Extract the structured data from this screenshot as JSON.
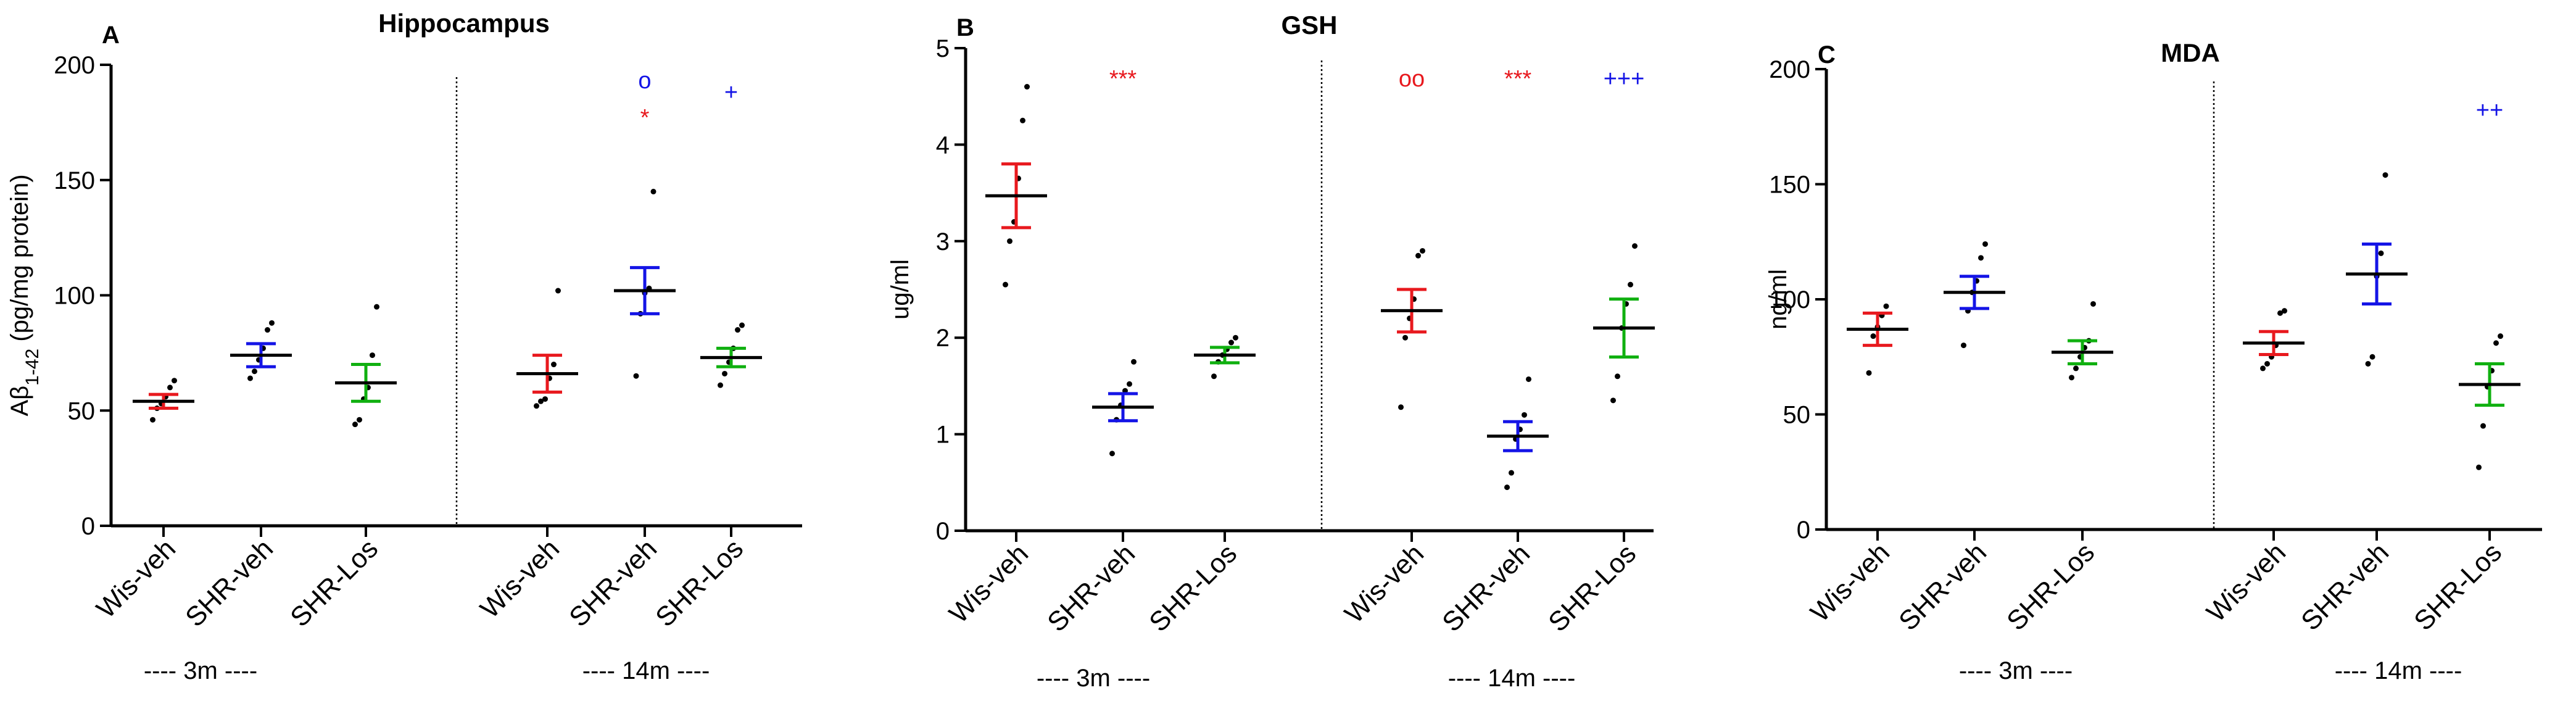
{
  "chart_data": [
    {
      "type": "scatter",
      "panel": "A",
      "title": "Hippocampus",
      "ylabel_main": "Aβ",
      "ylabel_sub": "1-42",
      "ylabel_rest": " (pg/mg protein)",
      "ylim": [
        0,
        200
      ],
      "yticks": [
        "0",
        "50",
        "100",
        "150",
        "200"
      ],
      "categories": [
        "Wis-veh",
        "SHR-veh",
        "SHR-Los",
        "Wis-veh",
        "SHR-veh",
        "SHR-Los"
      ],
      "groups": [
        "---- 3m ----",
        "---- 14m ----"
      ],
      "colors": [
        "#e8191e",
        "#1414e6",
        "#10b010",
        "#e8191e",
        "#1414e6",
        "#10b010"
      ],
      "series": [
        {
          "mean": 54,
          "sem": 3,
          "points": [
            46,
            51,
            53,
            56,
            60,
            63
          ]
        },
        {
          "mean": 74,
          "sem": 5,
          "points": [
            64,
            67,
            72,
            77,
            85,
            88
          ]
        },
        {
          "mean": 62,
          "sem": 8,
          "points": [
            44,
            46,
            55,
            60,
            74,
            95
          ]
        },
        {
          "mean": 66,
          "sem": 8,
          "points": [
            52,
            54,
            55,
            64,
            70,
            102
          ]
        },
        {
          "mean": 102,
          "sem": 10,
          "points": [
            65,
            92,
            101,
            103,
            145
          ]
        },
        {
          "mean": 73,
          "sem": 4,
          "points": [
            61,
            66,
            71,
            77,
            85,
            87
          ]
        }
      ],
      "significance": [
        {
          "group": 4,
          "label": "o",
          "color": "#1414e6",
          "value": 193
        },
        {
          "group": 4,
          "label": "*",
          "color": "#e8191e",
          "value": 177
        },
        {
          "group": 5,
          "label": "+",
          "color": "#1414e6",
          "value": 188
        }
      ]
    },
    {
      "type": "scatter",
      "panel": "B",
      "title": "GSH",
      "ylabel_main": "ug/ml",
      "ylabel_sub": "",
      "ylabel_rest": "",
      "ylim": [
        0,
        5
      ],
      "yticks": [
        "0",
        "1",
        "2",
        "3",
        "4",
        "5"
      ],
      "categories": [
        "Wis-veh",
        "SHR-veh",
        "SHR-Los",
        "Wis-veh",
        "SHR-veh",
        "SHR-Los"
      ],
      "groups": [
        "---- 3m ----",
        "---- 14m ----"
      ],
      "colors": [
        "#e8191e",
        "#1414e6",
        "#10b010",
        "#e8191e",
        "#1414e6",
        "#10b010"
      ],
      "series": [
        {
          "mean": 3.47,
          "sem": 0.33,
          "points": [
            2.55,
            3.0,
            3.2,
            3.65,
            4.25,
            4.6
          ]
        },
        {
          "mean": 1.28,
          "sem": 0.14,
          "points": [
            0.8,
            1.15,
            1.3,
            1.45,
            1.52,
            1.75
          ]
        },
        {
          "mean": 1.82,
          "sem": 0.08,
          "points": [
            1.6,
            1.75,
            1.82,
            1.88,
            1.95,
            2.0
          ]
        },
        {
          "mean": 2.28,
          "sem": 0.22,
          "points": [
            1.28,
            2.0,
            2.2,
            2.4,
            2.85,
            2.9
          ]
        },
        {
          "mean": 0.98,
          "sem": 0.15,
          "points": [
            0.45,
            0.6,
            0.95,
            1.05,
            1.2,
            1.57
          ]
        },
        {
          "mean": 2.1,
          "sem": 0.3,
          "points": [
            1.35,
            1.6,
            2.1,
            2.35,
            2.55,
            2.95
          ]
        }
      ],
      "significance": [
        {
          "group": 1,
          "label": "***",
          "color": "#e8191e",
          "value": 4.68
        },
        {
          "group": 3,
          "label": "oo",
          "color": "#e8191e",
          "value": 4.68
        },
        {
          "group": 4,
          "label": "***",
          "color": "#e8191e",
          "value": 4.68
        },
        {
          "group": 5,
          "label": "+++",
          "color": "#1414e6",
          "value": 4.68
        }
      ]
    },
    {
      "type": "scatter",
      "panel": "C",
      "title": "MDA",
      "ylabel_main": "ng/ml",
      "ylabel_sub": "",
      "ylabel_rest": "",
      "ylim": [
        0,
        200
      ],
      "yticks": [
        "0",
        "50",
        "100",
        "150",
        "200"
      ],
      "categories": [
        "Wis-veh",
        "SHR-veh",
        "SHR-Los",
        "Wis-veh",
        "SHR-veh",
        "SHR-Los"
      ],
      "groups": [
        "---- 3m ----",
        "---- 14m ----"
      ],
      "colors": [
        "#e8191e",
        "#1414e6",
        "#10b010",
        "#e8191e",
        "#1414e6",
        "#10b010"
      ],
      "series": [
        {
          "mean": 87,
          "sem": 7,
          "points": [
            68,
            84,
            88,
            93,
            97
          ]
        },
        {
          "mean": 103,
          "sem": 7,
          "points": [
            80,
            95,
            103,
            108,
            118,
            124
          ]
        },
        {
          "mean": 77,
          "sem": 5,
          "points": [
            66,
            70,
            75,
            79,
            82,
            98
          ]
        },
        {
          "mean": 81,
          "sem": 5,
          "points": [
            70,
            72,
            75,
            80,
            94,
            95
          ]
        },
        {
          "mean": 111,
          "sem": 13,
          "points": [
            72,
            75,
            110,
            120,
            154
          ]
        },
        {
          "mean": 63,
          "sem": 9,
          "points": [
            27,
            45,
            62,
            69,
            81,
            84
          ]
        }
      ],
      "significance": [
        {
          "group": 5,
          "label": "++",
          "color": "#1414e6",
          "value": 182
        }
      ]
    }
  ]
}
